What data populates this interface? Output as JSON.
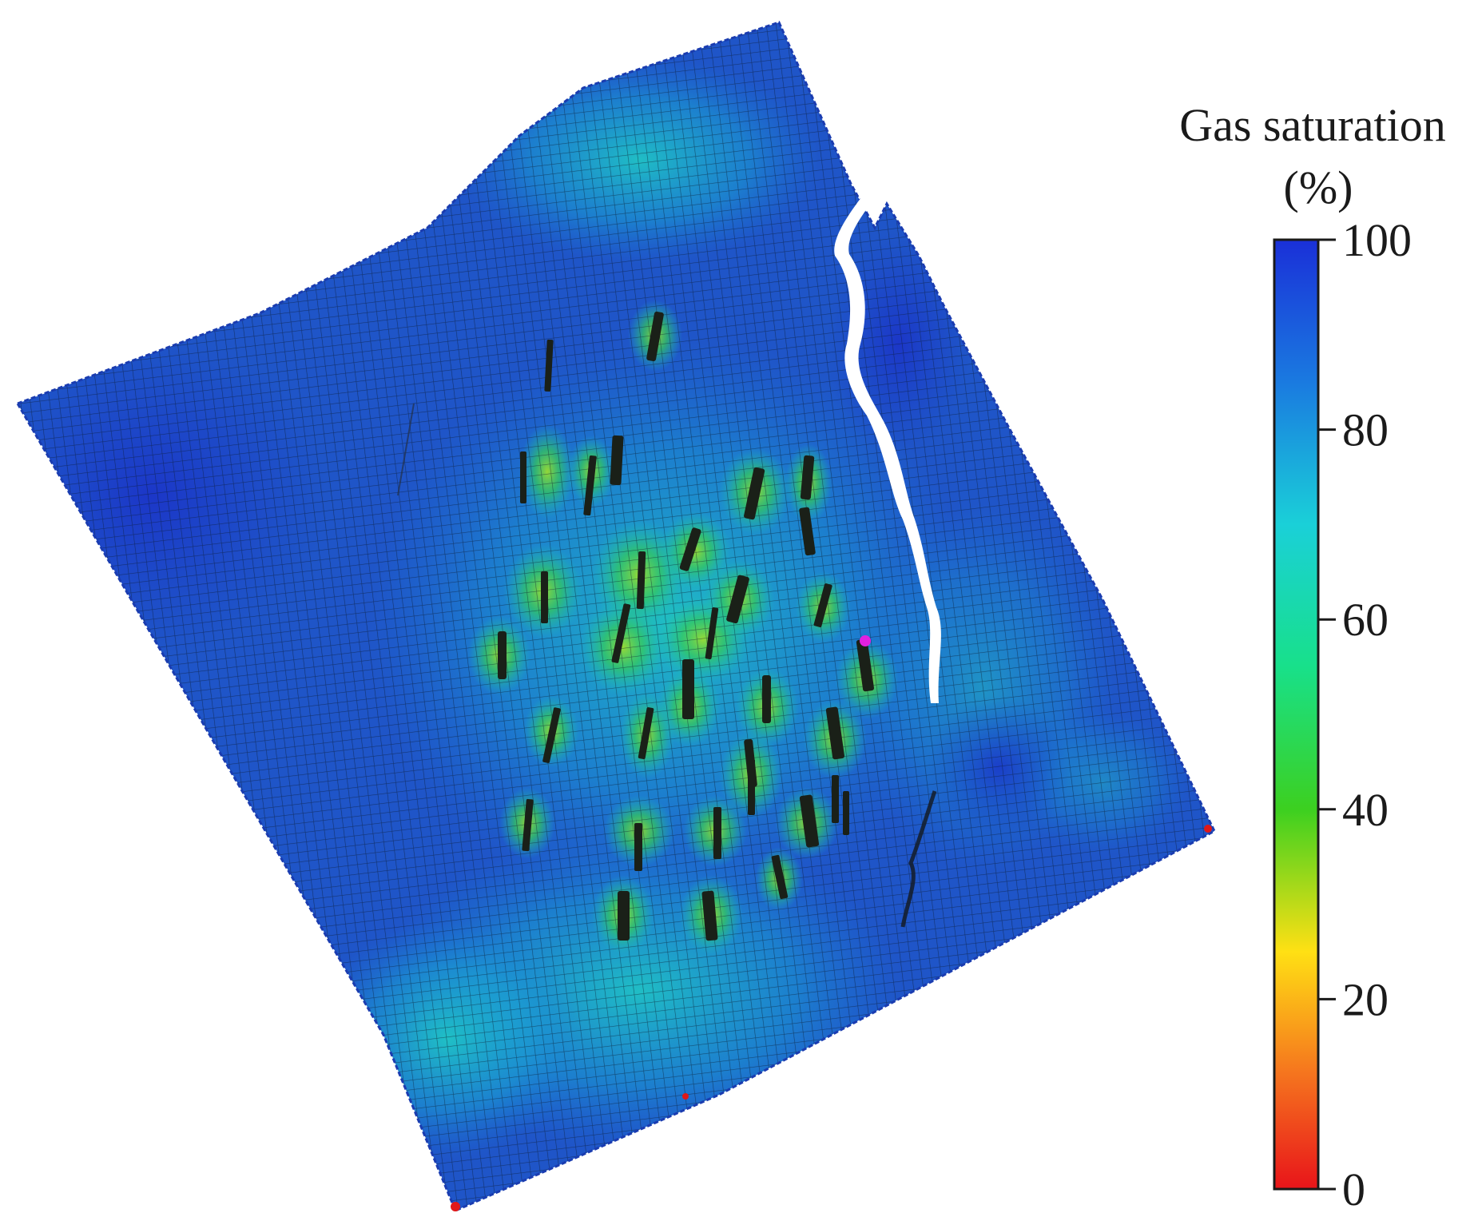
{
  "legend": {
    "title_line1": "Gas saturation",
    "title_line2": "(%)",
    "min": 0,
    "max": 100,
    "ticks": [
      {
        "value": 100,
        "label": "100"
      },
      {
        "value": 80,
        "label": "80"
      },
      {
        "value": 60,
        "label": "60"
      },
      {
        "value": 40,
        "label": "40"
      },
      {
        "value": 20,
        "label": "20"
      },
      {
        "value": 0,
        "label": "0"
      }
    ],
    "colormap": [
      {
        "value": 0,
        "color": "#e8141a"
      },
      {
        "value": 12,
        "color": "#f5731e"
      },
      {
        "value": 25,
        "color": "#ffe014"
      },
      {
        "value": 40,
        "color": "#3cd020"
      },
      {
        "value": 55,
        "color": "#18e08a"
      },
      {
        "value": 70,
        "color": "#1ad0d8"
      },
      {
        "value": 85,
        "color": "#1a7ae0"
      },
      {
        "value": 100,
        "color": "#1a30d8"
      }
    ]
  },
  "colors": {
    "model_base": "#1f55c8",
    "model_mid": "#1a8ed8",
    "model_high": "#1ec2c8",
    "grid_line": "#0b1a2e",
    "fracture": "#1a2018",
    "halo": "#3fd23a",
    "well_marker": "#e020e0",
    "corner_marker": "#e01818"
  }
}
